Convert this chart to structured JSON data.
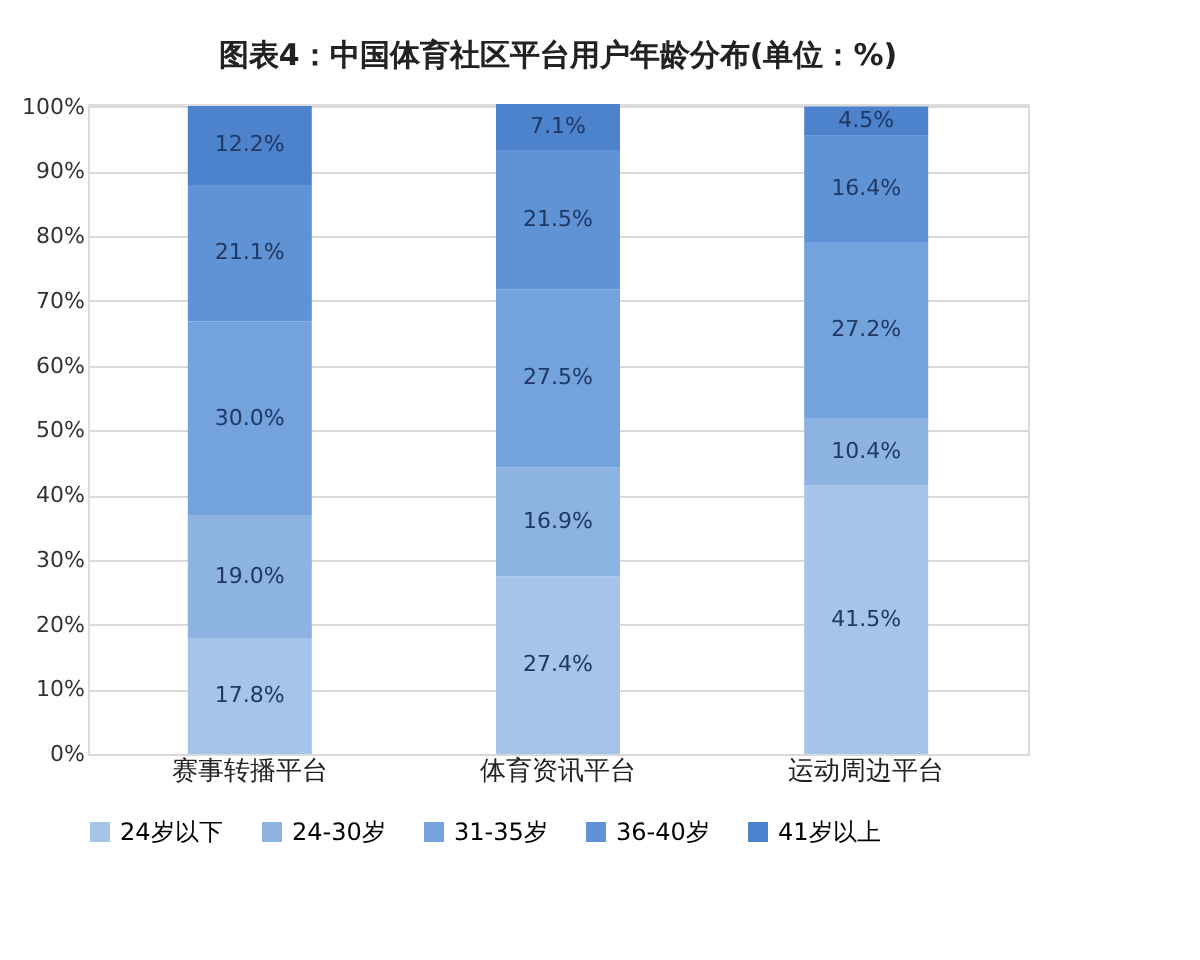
{
  "chart_data": {
    "type": "bar",
    "stacked": true,
    "title": "图表4：中国体育社区平台用户年龄分布(单位：%)",
    "categories": [
      "赛事转播平台",
      "体育资讯平台",
      "运动周边平台"
    ],
    "series": [
      {
        "name": "24岁以下",
        "color": "#a4c4ea",
        "values": [
          17.8,
          27.4,
          41.5
        ],
        "value_labels": [
          "17.8%",
          "27.4%",
          "41.5%"
        ]
      },
      {
        "name": "24-30岁",
        "color": "#8db3e3",
        "values": [
          19.0,
          16.9,
          10.4
        ],
        "value_labels": [
          "19.0%",
          "16.9%",
          "10.4%"
        ]
      },
      {
        "name": "31-35岁",
        "color": "#73a2dc",
        "values": [
          30.0,
          27.5,
          27.2
        ],
        "value_labels": [
          "30.0%",
          "27.5%",
          "27.2%"
        ]
      },
      {
        "name": "36-40岁",
        "color": "#6093d6",
        "values": [
          21.1,
          21.5,
          16.4
        ],
        "value_labels": [
          "21.1%",
          "21.5%",
          "16.4%"
        ]
      },
      {
        "name": "41岁以上",
        "color": "#4d82cc",
        "values": [
          12.2,
          7.1,
          4.5
        ],
        "value_labels": [
          "12.2%",
          "7.1%",
          "4.5%"
        ]
      }
    ],
    "ylim": [
      0,
      100.4
    ],
    "yticks": [
      {
        "value": 0,
        "label": "0%"
      },
      {
        "value": 10,
        "label": "10%"
      },
      {
        "value": 20,
        "label": "20%"
      },
      {
        "value": 30,
        "label": "30%"
      },
      {
        "value": 40,
        "label": "40%"
      },
      {
        "value": 50,
        "label": "50%"
      },
      {
        "value": 60,
        "label": "60%"
      },
      {
        "value": 70,
        "label": "70%"
      },
      {
        "value": 80,
        "label": "80%"
      },
      {
        "value": 90,
        "label": "90%"
      },
      {
        "value": 100,
        "label": "100%"
      }
    ],
    "grid": "y",
    "legend": "bottom"
  }
}
